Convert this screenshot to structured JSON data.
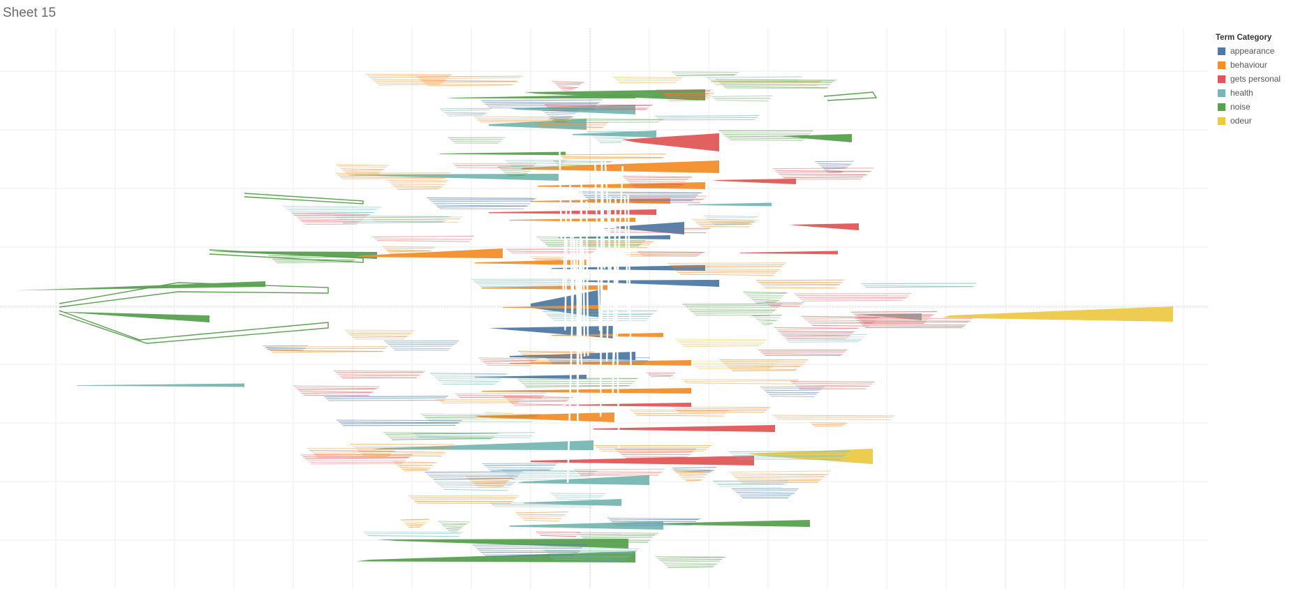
{
  "sheet": {
    "title": "Sheet 15"
  },
  "legend": {
    "title": "Term Category",
    "items": [
      {
        "label": "appearance",
        "color": "#4E79A7"
      },
      {
        "label": "behaviour",
        "color": "#F28E2B"
      },
      {
        "label": "gets personal",
        "color": "#E15759"
      },
      {
        "label": "health",
        "color": "#76B7B2"
      },
      {
        "label": "noise",
        "color": "#59A14F"
      },
      {
        "label": "odeur",
        "color": "#EDC948"
      }
    ]
  },
  "chart_data": {
    "type": "area",
    "title": "Sheet 15",
    "xlabel": "",
    "ylabel": "",
    "grid": true,
    "legend_position": "top-right",
    "legend_title": "Term Category",
    "series": [
      {
        "name": "appearance",
        "color": "#4E79A7"
      },
      {
        "name": "behaviour",
        "color": "#F28E2B"
      },
      {
        "name": "gets personal",
        "color": "#E15759"
      },
      {
        "name": "health",
        "color": "#76B7B2"
      },
      {
        "name": "noise",
        "color": "#59A14F"
      },
      {
        "name": "odeur",
        "color": "#EDC948"
      }
    ]
  }
}
